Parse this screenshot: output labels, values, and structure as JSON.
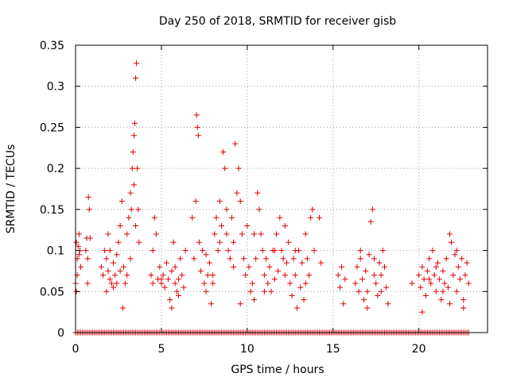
{
  "chart_data": {
    "type": "scatter",
    "title": "Day 250 of 2018, SRMTID for receiver gisb",
    "xlabel": "GPS time / hours",
    "ylabel": "SRMTID / TECUs",
    "xlim": [
      0,
      24
    ],
    "ylim": [
      0,
      0.35
    ],
    "xticks": [
      0,
      5,
      10,
      15,
      20
    ],
    "xtick_labels": [
      "0",
      "5",
      "10",
      "15",
      "20"
    ],
    "yticks": [
      0,
      0.05,
      0.1,
      0.15,
      0.2,
      0.25,
      0.3,
      0.35
    ],
    "ytick_labels": [
      "0",
      "0.05",
      "0.1",
      "0.15",
      "0.2",
      "0.25",
      "0.3",
      "0.35"
    ],
    "grid": true,
    "marker": "+",
    "color": "#e00000",
    "series": [
      {
        "name": "SRMTID",
        "points": [
          [
            0.0,
            0.06
          ],
          [
            0.05,
            0.11
          ],
          [
            0.1,
            0.09
          ],
          [
            0.15,
            0.105
          ],
          [
            0.2,
            0.12
          ],
          [
            0.25,
            0.1
          ],
          [
            0.3,
            0.08
          ],
          [
            0.1,
            0.07
          ],
          [
            0.2,
            0.095
          ],
          [
            0.05,
            0.05
          ],
          [
            0.6,
            0.1
          ],
          [
            0.65,
            0.115
          ],
          [
            0.7,
            0.09
          ],
          [
            0.75,
            0.165
          ],
          [
            0.8,
            0.15
          ],
          [
            0.85,
            0.115
          ],
          [
            0.7,
            0.06
          ],
          [
            1.5,
            0.08
          ],
          [
            1.6,
            0.07
          ],
          [
            1.7,
            0.1
          ],
          [
            1.8,
            0.09
          ],
          [
            1.9,
            0.075
          ],
          [
            2.0,
            0.065
          ],
          [
            2.1,
            0.06
          ],
          [
            2.2,
            0.085
          ],
          [
            2.3,
            0.07
          ],
          [
            2.4,
            0.095
          ],
          [
            2.5,
            0.11
          ],
          [
            2.6,
            0.13
          ],
          [
            2.7,
            0.16
          ],
          [
            2.75,
            0.03
          ],
          [
            2.8,
            0.08
          ],
          [
            2.9,
            0.06
          ],
          [
            3.0,
            0.12
          ],
          [
            3.1,
            0.14
          ],
          [
            3.2,
            0.17
          ],
          [
            3.25,
            0.15
          ],
          [
            3.3,
            0.2
          ],
          [
            3.35,
            0.22
          ],
          [
            3.4,
            0.24
          ],
          [
            3.45,
            0.255
          ],
          [
            3.5,
            0.31
          ],
          [
            3.55,
            0.328
          ],
          [
            3.6,
            0.2
          ],
          [
            3.65,
            0.15
          ],
          [
            3.7,
            0.11
          ],
          [
            1.8,
            0.05
          ],
          [
            2.0,
            0.1
          ],
          [
            2.2,
            0.055
          ],
          [
            2.6,
            0.075
          ],
          [
            3.0,
            0.07
          ],
          [
            3.2,
            0.09
          ],
          [
            3.4,
            0.18
          ],
          [
            3.5,
            0.13
          ],
          [
            1.9,
            0.12
          ],
          [
            2.4,
            0.06
          ],
          [
            4.4,
            0.07
          ],
          [
            4.5,
            0.1
          ],
          [
            4.6,
            0.14
          ],
          [
            4.7,
            0.12
          ],
          [
            4.8,
            0.065
          ],
          [
            4.9,
            0.08
          ],
          [
            5.0,
            0.06
          ],
          [
            5.1,
            0.07
          ],
          [
            5.2,
            0.055
          ],
          [
            5.3,
            0.085
          ],
          [
            5.4,
            0.065
          ],
          [
            5.5,
            0.04
          ],
          [
            5.6,
            0.075
          ],
          [
            5.7,
            0.11
          ],
          [
            5.8,
            0.06
          ],
          [
            5.9,
            0.05
          ],
          [
            6.0,
            0.065
          ],
          [
            6.1,
            0.09
          ],
          [
            6.2,
            0.07
          ],
          [
            6.3,
            0.055
          ],
          [
            6.4,
            0.1
          ],
          [
            4.5,
            0.06
          ],
          [
            5.0,
            0.065
          ],
          [
            5.6,
            0.03
          ],
          [
            5.8,
            0.08
          ],
          [
            6.0,
            0.045
          ],
          [
            6.8,
            0.14
          ],
          [
            6.9,
            0.09
          ],
          [
            7.0,
            0.16
          ],
          [
            7.05,
            0.265
          ],
          [
            7.1,
            0.25
          ],
          [
            7.15,
            0.24
          ],
          [
            7.2,
            0.11
          ],
          [
            7.3,
            0.075
          ],
          [
            7.4,
            0.1
          ],
          [
            7.5,
            0.06
          ],
          [
            7.6,
            0.05
          ],
          [
            7.7,
            0.07
          ],
          [
            7.8,
            0.085
          ],
          [
            7.9,
            0.035
          ],
          [
            8.0,
            0.06
          ],
          [
            8.1,
            0.12
          ],
          [
            8.2,
            0.14
          ],
          [
            8.3,
            0.1
          ],
          [
            8.4,
            0.16
          ],
          [
            8.5,
            0.13
          ],
          [
            8.6,
            0.22
          ],
          [
            8.7,
            0.2
          ],
          [
            8.8,
            0.15
          ],
          [
            8.9,
            0.1
          ],
          [
            9.0,
            0.09
          ],
          [
            9.1,
            0.14
          ],
          [
            9.2,
            0.08
          ],
          [
            9.3,
            0.23
          ],
          [
            9.4,
            0.17
          ],
          [
            9.5,
            0.2
          ],
          [
            9.6,
            0.16
          ],
          [
            9.7,
            0.12
          ],
          [
            9.8,
            0.09
          ],
          [
            9.9,
            0.07
          ],
          [
            7.6,
            0.095
          ],
          [
            8.0,
            0.07
          ],
          [
            8.4,
            0.11
          ],
          [
            8.8,
            0.12
          ],
          [
            9.2,
            0.11
          ],
          [
            9.6,
            0.035
          ],
          [
            10.0,
            0.13
          ],
          [
            10.1,
            0.08
          ],
          [
            10.2,
            0.05
          ],
          [
            10.3,
            0.06
          ],
          [
            10.4,
            0.04
          ],
          [
            10.5,
            0.09
          ],
          [
            10.6,
            0.17
          ],
          [
            10.7,
            0.15
          ],
          [
            10.8,
            0.12
          ],
          [
            10.9,
            0.1
          ],
          [
            11.0,
            0.07
          ],
          [
            11.1,
            0.09
          ],
          [
            11.2,
            0.06
          ],
          [
            11.3,
            0.08
          ],
          [
            11.4,
            0.05
          ],
          [
            11.5,
            0.1
          ],
          [
            11.6,
            0.065
          ],
          [
            11.7,
            0.12
          ],
          [
            11.8,
            0.075
          ],
          [
            11.9,
            0.14
          ],
          [
            12.0,
            0.1
          ],
          [
            12.1,
            0.09
          ],
          [
            12.2,
            0.13
          ],
          [
            12.3,
            0.085
          ],
          [
            12.4,
            0.11
          ],
          [
            12.5,
            0.06
          ],
          [
            12.6,
            0.045
          ],
          [
            12.7,
            0.09
          ],
          [
            12.8,
            0.07
          ],
          [
            12.9,
            0.03
          ],
          [
            13.0,
            0.1
          ],
          [
            13.1,
            0.055
          ],
          [
            13.2,
            0.085
          ],
          [
            13.3,
            0.04
          ],
          [
            13.4,
            0.12
          ],
          [
            13.5,
            0.09
          ],
          [
            13.6,
            0.07
          ],
          [
            13.7,
            0.14
          ],
          [
            13.8,
            0.15
          ],
          [
            13.9,
            0.1
          ],
          [
            14.2,
            0.14
          ],
          [
            14.3,
            0.085
          ],
          [
            10.4,
            0.12
          ],
          [
            11.0,
            0.05
          ],
          [
            11.6,
            0.1
          ],
          [
            12.2,
            0.07
          ],
          [
            12.8,
            0.1
          ],
          [
            13.4,
            0.06
          ],
          [
            15.3,
            0.07
          ],
          [
            15.4,
            0.055
          ],
          [
            15.5,
            0.08
          ],
          [
            15.6,
            0.035
          ],
          [
            15.7,
            0.065
          ],
          [
            16.3,
            0.06
          ],
          [
            16.4,
            0.08
          ],
          [
            16.5,
            0.05
          ],
          [
            16.6,
            0.09
          ],
          [
            16.7,
            0.065
          ],
          [
            16.8,
            0.04
          ],
          [
            16.9,
            0.075
          ],
          [
            17.0,
            0.05
          ],
          [
            17.1,
            0.095
          ],
          [
            17.2,
            0.135
          ],
          [
            17.3,
            0.15
          ],
          [
            17.4,
            0.07
          ],
          [
            17.5,
            0.06
          ],
          [
            17.6,
            0.045
          ],
          [
            17.7,
            0.085
          ],
          [
            17.8,
            0.07
          ],
          [
            17.9,
            0.1
          ],
          [
            18.0,
            0.08
          ],
          [
            18.1,
            0.055
          ],
          [
            18.2,
            0.035
          ],
          [
            16.6,
            0.1
          ],
          [
            17.0,
            0.03
          ],
          [
            17.4,
            0.09
          ],
          [
            17.8,
            0.05
          ],
          [
            19.6,
            0.06
          ],
          [
            20.0,
            0.07
          ],
          [
            20.1,
            0.055
          ],
          [
            20.2,
            0.08
          ],
          [
            20.3,
            0.065
          ],
          [
            20.4,
            0.045
          ],
          [
            20.5,
            0.075
          ],
          [
            20.6,
            0.09
          ],
          [
            20.7,
            0.06
          ],
          [
            20.8,
            0.1
          ],
          [
            20.9,
            0.07
          ],
          [
            21.0,
            0.05
          ],
          [
            21.1,
            0.085
          ],
          [
            21.2,
            0.065
          ],
          [
            21.3,
            0.04
          ],
          [
            21.4,
            0.075
          ],
          [
            21.5,
            0.06
          ],
          [
            21.6,
            0.09
          ],
          [
            21.7,
            0.055
          ],
          [
            21.8,
            0.12
          ],
          [
            21.9,
            0.11
          ],
          [
            22.0,
            0.07
          ],
          [
            22.1,
            0.095
          ],
          [
            22.2,
            0.05
          ],
          [
            22.3,
            0.08
          ],
          [
            22.4,
            0.065
          ],
          [
            22.5,
            0.09
          ],
          [
            22.6,
            0.04
          ],
          [
            22.7,
            0.07
          ],
          [
            22.8,
            0.085
          ],
          [
            22.9,
            0.06
          ],
          [
            20.2,
            0.025
          ],
          [
            20.6,
            0.065
          ],
          [
            21.0,
            0.08
          ],
          [
            21.4,
            0.05
          ],
          [
            21.8,
            0.035
          ],
          [
            22.2,
            0.1
          ],
          [
            22.6,
            0.03
          ]
        ]
      },
      {
        "name": "SRMTID zero values",
        "points": []
      }
    ],
    "zero_bands": [
      [
        0.0,
        22.9
      ]
    ]
  }
}
